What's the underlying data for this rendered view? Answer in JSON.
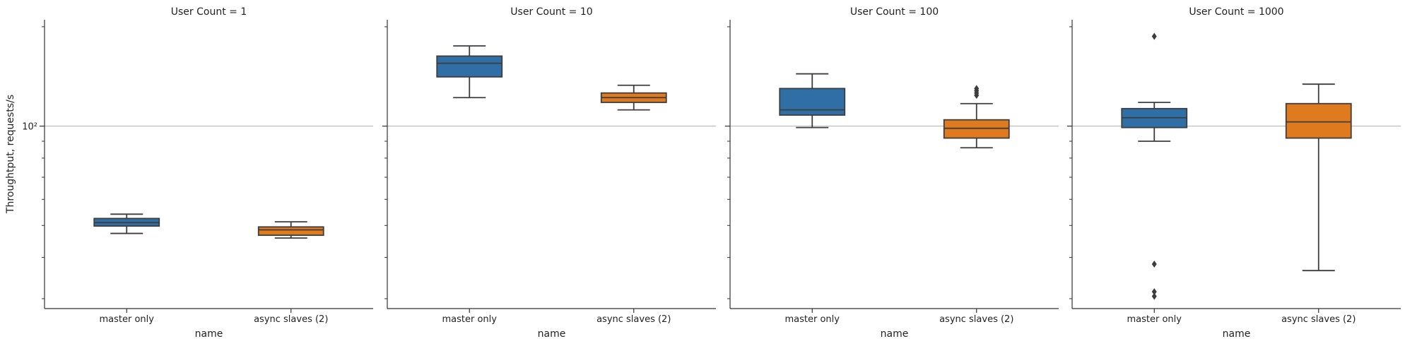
{
  "chart_data": {
    "type": "box",
    "facet_variable": "User Count",
    "facets": [
      {
        "title": "User Count = 1",
        "boxes": [
          {
            "category": "master only",
            "color": "#2f6fa6",
            "whisker_low": 47.3,
            "q1": 49.8,
            "median": 51.0,
            "q3": 52.5,
            "whisker_high": 54.1,
            "outliers": []
          },
          {
            "category": "async slaves (2)",
            "color": "#e07a1f",
            "whisker_low": 45.8,
            "q1": 46.7,
            "median": 48.5,
            "q3": 49.5,
            "whisker_high": 51.3,
            "outliers": []
          }
        ]
      },
      {
        "title": "User Count = 10",
        "boxes": [
          {
            "category": "master only",
            "color": "#2f6fa6",
            "whisker_low": 122.0,
            "q1": 141.0,
            "median": 155.0,
            "q3": 163.0,
            "whisker_high": 175.0,
            "outliers": []
          },
          {
            "category": "async slaves (2)",
            "color": "#e07a1f",
            "whisker_low": 112.0,
            "q1": 118.0,
            "median": 122.0,
            "q3": 126.0,
            "whisker_high": 133.0,
            "outliers": []
          }
        ]
      },
      {
        "title": "User Count = 100",
        "boxes": [
          {
            "category": "master only",
            "color": "#2f6fa6",
            "whisker_low": 99.0,
            "q1": 108.0,
            "median": 112.0,
            "q3": 130.0,
            "whisker_high": 144.0,
            "outliers": []
          },
          {
            "category": "async slaves (2)",
            "color": "#e07a1f",
            "whisker_low": 86.0,
            "q1": 92.0,
            "median": 98.5,
            "q3": 104.5,
            "whisker_high": 117.0,
            "outliers": [
              124.0,
              126.0,
              128.0,
              130.0
            ]
          }
        ]
      },
      {
        "title": "User Count = 1000",
        "boxes": [
          {
            "category": "master only",
            "color": "#2f6fa6",
            "whisker_low": 90.0,
            "q1": 99.0,
            "median": 106.0,
            "q3": 113.0,
            "whisker_high": 118.0,
            "outliers": [
              187.0,
              38.2,
              31.5,
              30.5
            ]
          },
          {
            "category": "async slaves (2)",
            "color": "#e07a1f",
            "whisker_low": 36.5,
            "q1": 92.0,
            "median": 103.0,
            "q3": 117.0,
            "whisker_high": 134.0,
            "outliers": []
          }
        ]
      }
    ],
    "categories": [
      "master only",
      "async slaves (2)"
    ],
    "xlabel": "name",
    "ylabel": "Throughtput, requests/s",
    "yscale": "log",
    "ylim": [
      28,
      210
    ],
    "yticks": [
      {
        "value": 100,
        "label": "10²"
      }
    ],
    "minor_yticks": [
      30,
      40,
      50,
      60,
      70,
      80,
      90,
      200
    ],
    "grid": {
      "y_major": true
    }
  }
}
